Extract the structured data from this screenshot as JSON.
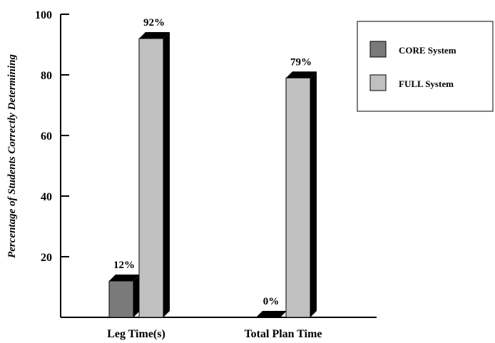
{
  "chart_data": {
    "type": "bar",
    "title": "",
    "xlabel": "",
    "ylabel": "Percentage of Students Correctly Determining",
    "ylim": [
      0,
      100
    ],
    "yticks": [
      "20",
      "40",
      "60",
      "80",
      "100"
    ],
    "categories": [
      "Leg Time(s)",
      "Total Plan Time"
    ],
    "series": [
      {
        "name": "CORE System",
        "values": [
          12,
          0
        ],
        "labels": [
          "12%",
          "0%"
        ],
        "color": "#7a7a7a"
      },
      {
        "name": "FULL System",
        "values": [
          92,
          79
        ],
        "labels": [
          "92%",
          "79%"
        ],
        "color": "#c0c0c0"
      }
    ],
    "style": "3d-bar",
    "depth_color": "#000000",
    "grid": false,
    "legend_position": "top-right"
  }
}
